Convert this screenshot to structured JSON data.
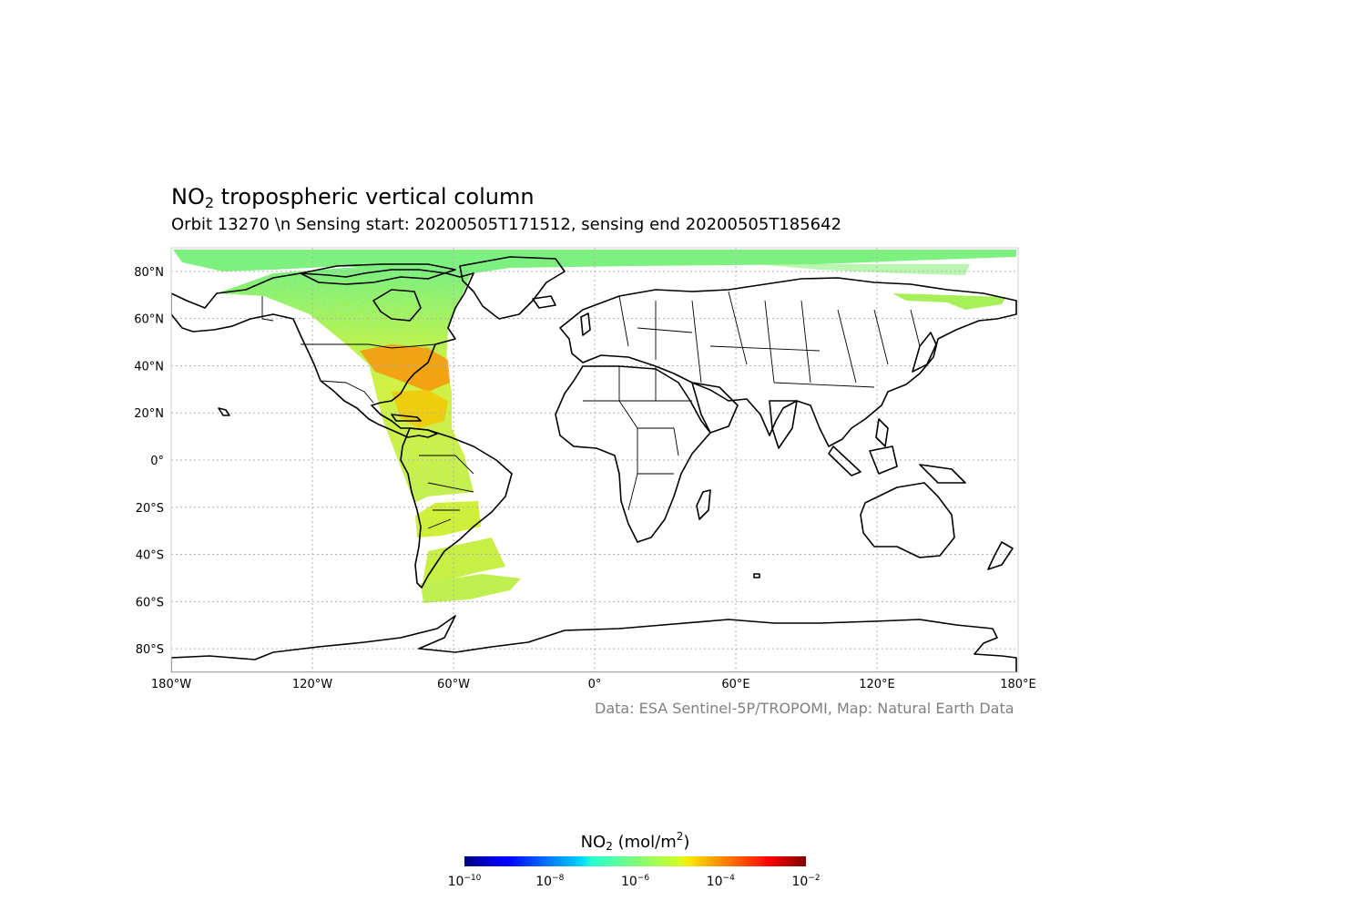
{
  "title": {
    "main": "NO",
    "sub": "2",
    "rest": " tropospheric vertical column"
  },
  "subtitle": "Orbit 13270 \\n Sensing start: 20200505T171512, sensing end 20200505T185642",
  "credit": "Data: ESA Sentinel-5P/TROPOMI, Map: Natural Earth Data",
  "chart_data": {
    "type": "heatmap",
    "projection": "PlateCarree",
    "lon_range": [
      -180,
      180
    ],
    "lat_range": [
      -90,
      90
    ],
    "grid": true,
    "x_ticks": [
      {
        "value": -180,
        "label": "180°W"
      },
      {
        "value": -120,
        "label": "120°W"
      },
      {
        "value": -60,
        "label": "60°W"
      },
      {
        "value": 0,
        "label": "0°"
      },
      {
        "value": 60,
        "label": "60°E"
      },
      {
        "value": 120,
        "label": "120°E"
      },
      {
        "value": 180,
        "label": "180°E"
      }
    ],
    "y_ticks": [
      {
        "value": 80,
        "label": "80°N"
      },
      {
        "value": 60,
        "label": "60°N"
      },
      {
        "value": 40,
        "label": "40°N"
      },
      {
        "value": 20,
        "label": "20°N"
      },
      {
        "value": 0,
        "label": "0°"
      },
      {
        "value": -20,
        "label": "20°S"
      },
      {
        "value": -40,
        "label": "40°S"
      },
      {
        "value": -60,
        "label": "60°S"
      },
      {
        "value": -80,
        "label": "80°S"
      }
    ],
    "colorbar": {
      "label_main": "NO",
      "label_sub": "2",
      "label_mid": " (mol/m",
      "label_sup": "2",
      "label_end": ")",
      "scale": "log",
      "range": [
        1e-10,
        0.01
      ],
      "colormap": "jet",
      "ticks": [
        {
          "base": "10",
          "exp": "−10",
          "value": 1e-10
        },
        {
          "base": "10",
          "exp": "−8",
          "value": 1e-08
        },
        {
          "base": "10",
          "exp": "−6",
          "value": 1e-06
        },
        {
          "base": "10",
          "exp": "−4",
          "value": 0.0001
        },
        {
          "base": "10",
          "exp": "−2",
          "value": 0.01
        }
      ]
    },
    "swath": {
      "typical_value": 1e-06,
      "high_value_regions": [
        "eastern United States",
        "Gulf of Mexico coast"
      ],
      "coverage_note": "single orbit swath over the Americas plus polar strip"
    }
  }
}
